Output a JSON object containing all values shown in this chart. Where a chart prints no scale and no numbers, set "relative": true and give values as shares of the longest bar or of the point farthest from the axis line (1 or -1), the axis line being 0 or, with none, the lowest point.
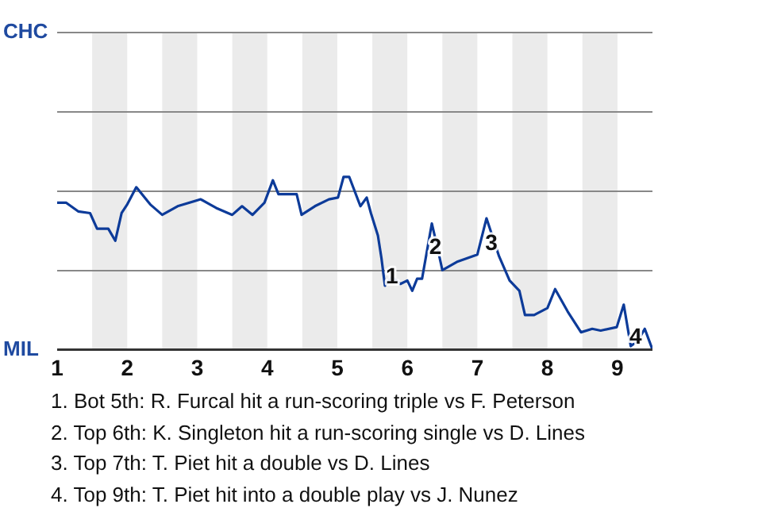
{
  "chart_data": {
    "type": "line",
    "relative": true,
    "x": [
      1,
      1.13,
      1.3,
      1.47,
      1.57,
      1.73,
      1.83,
      1.92,
      2,
      2.13,
      2.33,
      2.5,
      2.72,
      3.05,
      3.27,
      3.5,
      3.64,
      3.79,
      3.96,
      4.08,
      4.16,
      4.42,
      4.49,
      4.68,
      4.88,
      5.01,
      5.09,
      5.17,
      5.33,
      5.42,
      5.48,
      5.58,
      5.63,
      5.68,
      5.78,
      5.9,
      6,
      6.07,
      6.14,
      6.21,
      6.35,
      6.43,
      6.5,
      6.72,
      7,
      7.13,
      7.31,
      7.46,
      7.6,
      7.68,
      7.81,
      8,
      8.11,
      8.29,
      8.48,
      8.64,
      8.76,
      8.99,
      9.09,
      9.19,
      9.29,
      9.39,
      9.5
    ],
    "series": [
      {
        "color": "#0d3b99",
        "values": [
          0.85,
          0.85,
          0.8,
          0.79,
          0.7,
          0.7,
          0.63,
          0.79,
          0.84,
          0.94,
          0.84,
          0.78,
          0.83,
          0.87,
          0.82,
          0.78,
          0.83,
          0.78,
          0.85,
          0.98,
          0.9,
          0.9,
          0.78,
          0.83,
          0.87,
          0.88,
          1,
          1,
          0.83,
          0.88,
          0.79,
          0.66,
          0.53,
          0.37,
          0.42,
          0.38,
          0.4,
          0.34,
          0.41,
          0.41,
          0.73,
          0.59,
          0.46,
          0.51,
          0.55,
          0.76,
          0.54,
          0.4,
          0.34,
          0.2,
          0.2,
          0.24,
          0.35,
          0.22,
          0.1,
          0.12,
          0.11,
          0.13,
          0.26,
          0.02,
          0.05,
          0.12,
          0
        ]
      }
    ],
    "xlim": [
      1,
      9.5
    ],
    "xticks": [
      1,
      2,
      3,
      4,
      5,
      6,
      7,
      8,
      9
    ],
    "bands": [
      {
        "axis": "x",
        "from": 1.5,
        "to": 2,
        "color": "#ebebeb"
      },
      {
        "axis": "x",
        "from": 2.5,
        "to": 3,
        "color": "#ebebeb"
      },
      {
        "axis": "x",
        "from": 3.5,
        "to": 4,
        "color": "#ebebeb"
      },
      {
        "axis": "x",
        "from": 4.5,
        "to": 5,
        "color": "#ebebeb"
      },
      {
        "axis": "x",
        "from": 5.5,
        "to": 6,
        "color": "#ebebeb"
      },
      {
        "axis": "x",
        "from": 6.5,
        "to": 7,
        "color": "#ebebeb"
      },
      {
        "axis": "x",
        "from": 7.5,
        "to": 8,
        "color": "#ebebeb"
      },
      {
        "axis": "x",
        "from": 8.5,
        "to": 9,
        "color": "#ebebeb"
      }
    ],
    "annotations": [
      "CHC",
      "MIL",
      {
        "text": "1",
        "x": 5.78,
        "y": 0.42
      },
      {
        "text": "2",
        "x": 6.4,
        "y": 0.59
      },
      {
        "text": "3",
        "x": 7.2,
        "y": 0.61
      },
      {
        "text": "4",
        "x": 9.26,
        "y": 0.07
      },
      "1. Bot 5th: R. Furcal hit a run-scoring triple vs F. Peterson",
      "2. Top 6th: K. Singleton hit a run-scoring single vs D. Lines",
      "3. Top 7th: T. Piet hit a double vs D. Lines",
      "4. Top 9th: T. Piet hit into a double play vs J. Nunez"
    ],
    "ref_lines": [
      {
        "axis": "y",
        "value": 0.46,
        "color": "#888888"
      },
      {
        "axis": "y",
        "value": 0.92,
        "color": "#888888"
      },
      {
        "axis": "y",
        "value": 1.38,
        "color": "#888888"
      },
      {
        "axis": "y",
        "value": 1.84,
        "color": "#888888"
      }
    ],
    "legend": false,
    "marker": "none",
    "line_style": "solid"
  }
}
